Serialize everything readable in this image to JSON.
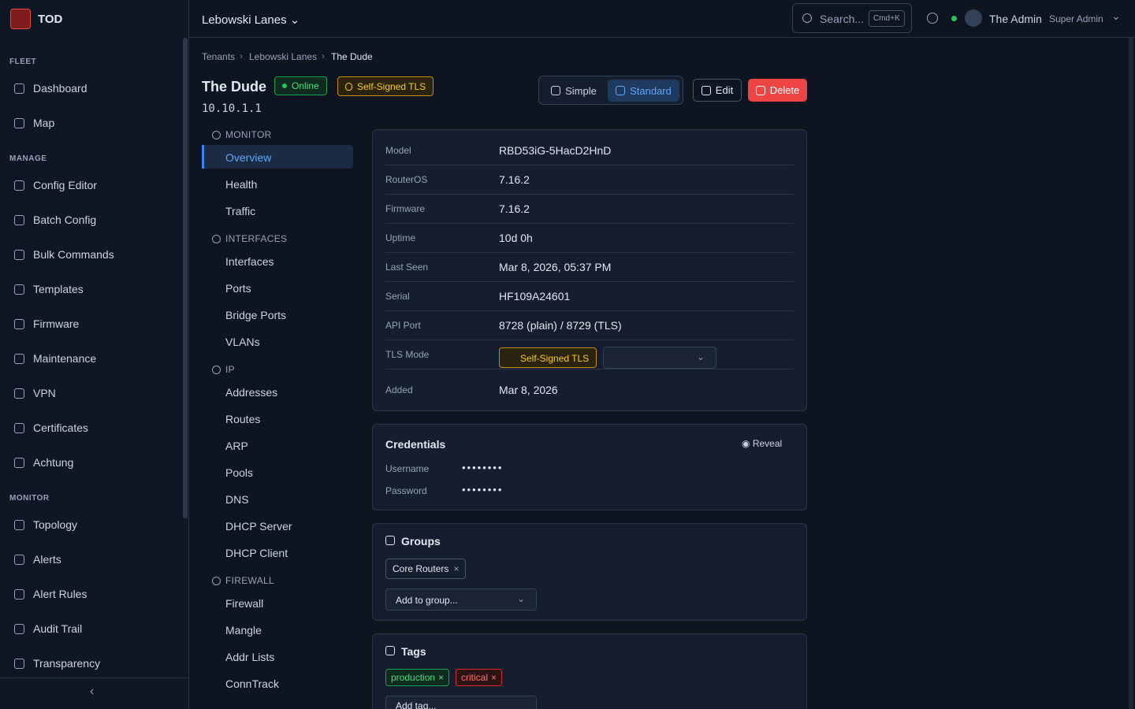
{
  "app": {
    "name": "TOD"
  },
  "sidebar": {
    "sections": [
      {
        "title": "FLEET",
        "items": [
          "Dashboard",
          "Map"
        ]
      },
      {
        "title": "MANAGE",
        "items": [
          "Config Editor",
          "Batch Config",
          "Bulk Commands",
          "Templates",
          "Firmware",
          "Maintenance",
          "VPN",
          "Certificates",
          "Achtung"
        ]
      },
      {
        "title": "MONITOR",
        "items": [
          "Topology",
          "Alerts",
          "Alert Rules",
          "Audit Trail",
          "Transparency"
        ]
      }
    ]
  },
  "topbar": {
    "tenant": "Lebowski Lanes",
    "search": "Search...",
    "shortcut": "Cmd+K",
    "user": "The Admin",
    "role": "Super Admin"
  },
  "breadcrumb": [
    "Tenants",
    "Lebowski Lanes",
    "The Dude"
  ],
  "device": {
    "name": "The Dude",
    "status": "Online",
    "tls": "Self-Signed TLS",
    "ip": "10.10.1.1"
  },
  "actions": {
    "simple": "Simple",
    "standard": "Standard",
    "edit": "Edit",
    "delete": "Delete"
  },
  "subnav": [
    {
      "title": "MONITOR",
      "items": [
        "Overview",
        "Health",
        "Traffic"
      ]
    },
    {
      "title": "INTERFACES",
      "items": [
        "Interfaces",
        "Ports",
        "Bridge Ports",
        "VLANs"
      ]
    },
    {
      "title": "IP",
      "items": [
        "Addresses",
        "Routes",
        "ARP",
        "Pools",
        "DNS",
        "DHCP Server",
        "DHCP Client"
      ]
    },
    {
      "title": "FIREWALL",
      "items": [
        "Firewall",
        "Mangle",
        "Addr Lists",
        "ConnTrack"
      ]
    }
  ],
  "info": [
    {
      "label": "Model",
      "value": "RBD53iG-5HacD2HnD"
    },
    {
      "label": "RouterOS",
      "value": "7.16.2"
    },
    {
      "label": "Firmware",
      "value": "7.16.2"
    },
    {
      "label": "Uptime",
      "value": "10d 0h"
    },
    {
      "label": "Last Seen",
      "value": "Mar 8, 2026, 05:37 PM"
    },
    {
      "label": "Serial",
      "value": "HF109A24601"
    },
    {
      "label": "API Port",
      "value": "8728 (plain) / 8729 (TLS)"
    },
    {
      "label": "TLS Mode",
      "value": "Self-Signed TLS"
    },
    {
      "label": "Added",
      "value": "Mar 8, 2026"
    }
  ],
  "credentials": {
    "title": "Credentials",
    "reveal": "Reveal",
    "rows": [
      {
        "label": "Username",
        "value": "••••••••"
      },
      {
        "label": "Password",
        "value": "••••••••"
      }
    ]
  },
  "groups": {
    "title": "Groups",
    "items": [
      "Core Routers"
    ],
    "select": "Add to group..."
  },
  "tags": {
    "title": "Tags",
    "items": [
      "production",
      "critical"
    ],
    "select": "Add tag..."
  }
}
